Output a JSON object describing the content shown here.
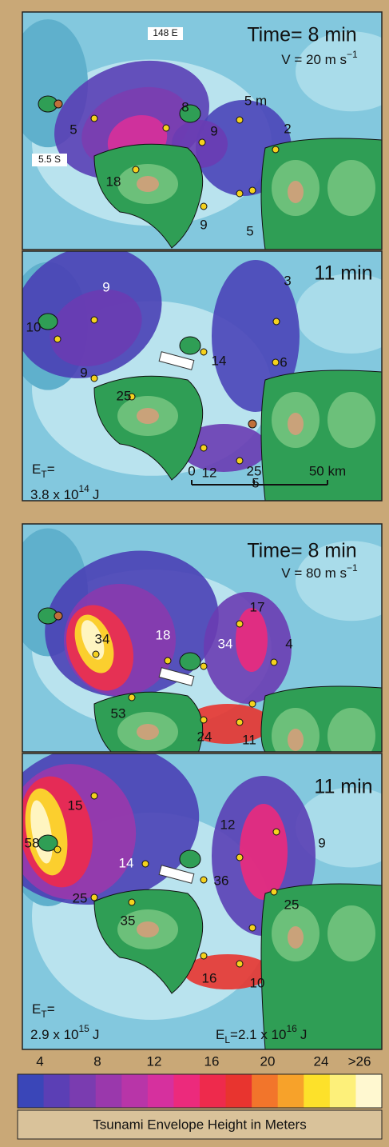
{
  "panels": [
    {
      "title": "Time= 8 min",
      "speed": {
        "text": "V = 20 m s",
        "exponent": "−1"
      },
      "map_labels": [
        "148 E",
        "5.5 S"
      ],
      "heights": [
        5,
        8,
        "5 m",
        9,
        2,
        18,
        9,
        5
      ]
    },
    {
      "title": "11 min",
      "heights": [
        9,
        3,
        10,
        9,
        14,
        6,
        25,
        12,
        5
      ],
      "energy": {
        "symbol": "E",
        "subscript": "T",
        "equals": "=",
        "mantissa": "3.8 x 10",
        "exponent": "14",
        "unit": "J"
      },
      "scale_bar": [
        "0",
        "25",
        "50 km"
      ]
    },
    {
      "title": "Time= 8 min",
      "speed": {
        "text": "V = 80 m s",
        "exponent": "−1"
      },
      "heights": [
        17,
        34,
        18,
        34,
        4,
        53,
        24,
        11
      ]
    },
    {
      "title": "11 min",
      "heights": [
        15,
        9,
        12,
        58,
        14,
        36,
        25,
        35,
        25,
        16,
        10
      ],
      "energy": {
        "symbol": "E",
        "subscript": "T",
        "equals": "=",
        "mantissa": "2.9 x 10",
        "exponent": "15",
        "unit": "J"
      },
      "landslide_energy": {
        "symbol": "E",
        "subscript": "L",
        "equals": "=",
        "mantissa": "2.1 x 10",
        "exponent": "16",
        "unit": "J"
      }
    }
  ],
  "colorbar": {
    "ticks": [
      "4",
      "8",
      "12",
      "16",
      "20",
      "24",
      ">26"
    ],
    "title": "Tsunami Envelope Height in Meters"
  }
}
